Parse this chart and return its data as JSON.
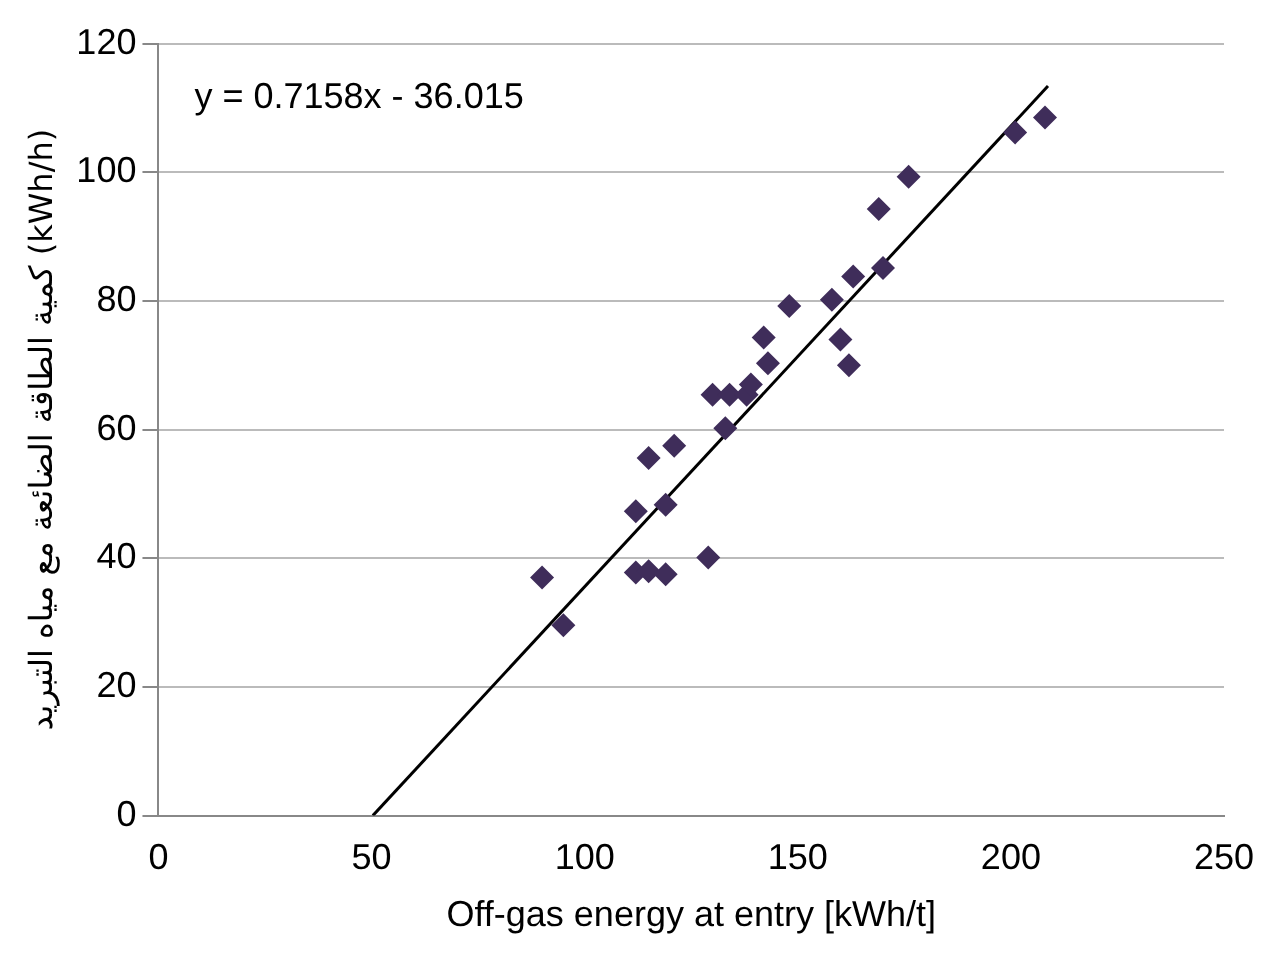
{
  "chart_data": {
    "type": "scatter",
    "xlabel": "Off-gas energy at entry [kWh/t]",
    "ylabel": "كمية الطاقة الضائعة مع مياه التبريد (kWh/h)",
    "annotations": [
      "y = 0.7158x - 36.015"
    ],
    "xlim": [
      0,
      250
    ],
    "xticks": [
      0,
      50,
      100,
      150,
      200,
      250
    ],
    "ylim": [
      0,
      120
    ],
    "yticks": [
      0,
      20,
      40,
      60,
      80,
      100,
      120
    ],
    "grid": "y",
    "legend": false,
    "marker": "diamond",
    "series": [
      {
        "type": "scatter",
        "color": "#3f2d5a",
        "x": [
          90,
          95,
          112,
          115,
          119,
          112,
          119,
          115,
          121,
          129,
          130,
          133,
          134,
          138,
          139,
          143,
          142,
          148,
          158,
          160,
          162,
          163,
          170,
          169,
          176,
          201,
          208
        ],
        "values": [
          37,
          29.6,
          37.8,
          38,
          37.5,
          47.3,
          48.3,
          55.6,
          57.5,
          40.1,
          65.4,
          60.2,
          65.4,
          65.4,
          67,
          70.3,
          74.3,
          79.2,
          80.2,
          74,
          70,
          83.8,
          85.1,
          94.3,
          99.3,
          106.2,
          108.5
        ]
      },
      {
        "type": "line",
        "color": "#000000",
        "marker": "none",
        "line_style": "solid",
        "x": [
          50.3,
          208.7
        ],
        "values": [
          0,
          113.4
        ]
      }
    ]
  }
}
